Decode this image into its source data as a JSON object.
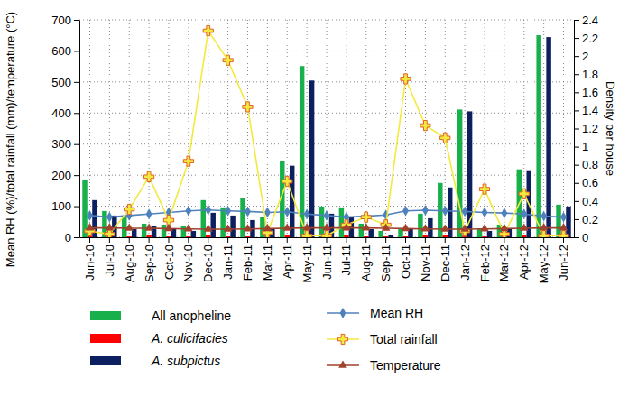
{
  "chart_data": {
    "type": "bar",
    "y_label": "Mean RH (%)/total rainfall (mm)/temperature (°C)",
    "y2_label": "Density per house",
    "categories": [
      "Jun-10",
      "Jul-10",
      "Aug-10",
      "Sep-10",
      "Oct-10",
      "Nov-10",
      "Dec-10",
      "Jan-11",
      "Feb-11",
      "Mar-11",
      "Apr-11",
      "May-11",
      "Jun-11",
      "Jul-11",
      "Aug-11",
      "Sep-11",
      "Oct-11",
      "Nov-11",
      "Dec-11",
      "Jan-12",
      "Feb-12",
      "Mar-12",
      "Apr-12",
      "May-12",
      "Jun-12"
    ],
    "ylim": [
      0,
      700
    ],
    "yticks": [
      0,
      100,
      200,
      300,
      400,
      500,
      600,
      700
    ],
    "y2lim": [
      0,
      2.4
    ],
    "y2ticks": [
      0,
      0.2,
      0.4,
      0.6,
      0.8,
      1,
      1.2,
      1.4,
      1.6,
      1.8,
      2,
      2.2,
      2.4
    ],
    "grid": true,
    "legend": "bottom",
    "series": [
      {
        "name": "All anopheline",
        "type": "bar",
        "axis": "y2",
        "color": "#17b04a",
        "values": [
          0.63,
          0.29,
          0.24,
          0.15,
          0.14,
          0.12,
          0.41,
          0.33,
          0.43,
          0.22,
          0.84,
          1.89,
          0.34,
          0.33,
          0.15,
          0.07,
          0.1,
          0.26,
          0.6,
          1.41,
          0.1,
          0.14,
          0.75,
          2.23,
          0.36
        ]
      },
      {
        "name": "A. culicifacies",
        "type": "bar",
        "axis": "y2",
        "color": "#ff0000",
        "values": [
          0.02,
          0.01,
          0.01,
          0.02,
          0.01,
          0.01,
          0.02,
          0.01,
          0.01,
          0.02,
          0.03,
          0.02,
          0.02,
          0.02,
          0.01,
          0.01,
          0.01,
          0.02,
          0.02,
          0.02,
          0.01,
          0.01,
          0.02,
          0.02,
          0.02
        ]
      },
      {
        "name": "A. subpictus",
        "type": "bar",
        "axis": "y2",
        "color": "#0c1f5e",
        "values": [
          0.41,
          0.24,
          0.09,
          0.12,
          0.09,
          0.07,
          0.27,
          0.24,
          0.19,
          0.1,
          0.79,
          1.73,
          0.26,
          0.22,
          0.09,
          0.03,
          0.09,
          0.21,
          0.55,
          1.39,
          0.07,
          0.09,
          0.74,
          2.21,
          0.34
        ]
      },
      {
        "name": "Mean RH",
        "type": "line",
        "color": "#4f81bd",
        "marker": "diamond",
        "values": [
          70,
          65,
          70,
          75,
          80,
          85,
          88,
          85,
          83,
          80,
          82,
          75,
          70,
          65,
          68,
          72,
          85,
          87,
          85,
          83,
          80,
          78,
          75,
          68,
          65
        ]
      },
      {
        "name": "Total rainfall",
        "type": "line",
        "color": "#f2ea3c",
        "marker": "plus",
        "values": [
          20,
          10,
          90,
          195,
          55,
          245,
          665,
          570,
          420,
          15,
          180,
          5,
          5,
          40,
          65,
          40,
          510,
          360,
          320,
          20,
          155,
          10,
          140,
          5,
          5
        ]
      },
      {
        "name": "Temperature",
        "type": "line",
        "color": "#a0422d",
        "marker": "triangle",
        "values": [
          30,
          30,
          29,
          29,
          28,
          27,
          26,
          26,
          27,
          28,
          29,
          30,
          30,
          30,
          30,
          29,
          28,
          27,
          26,
          26,
          27,
          28,
          29,
          30,
          30
        ]
      }
    ]
  }
}
